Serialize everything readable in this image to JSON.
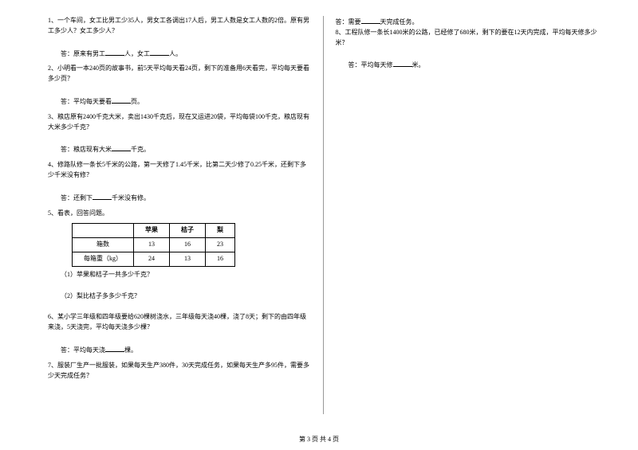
{
  "questions": {
    "q1": "1、一个车间，女工比男工少35人，男女工各调出17人后，男工人数是女工人数的2倍。原有男工多少人？女工多少人？",
    "a1_prefix": "答：原来有男工",
    "a1_mid": "人，女工",
    "a1_suffix": "人。",
    "q2": "2、小明看一本240页的故事书，前5天平均每天看24页，剩下的准备用6天看完，平均每天要看多少页？",
    "a2_prefix": "答：平均每天要看",
    "a2_suffix": "页。",
    "q3": "3、粮店原有2400千克大米，卖出1430千克后，现在又运进20袋，平均每袋100千克，粮店现有大米多少千克？",
    "a3_prefix": "答：粮店现有大米",
    "a3_suffix": "千克。",
    "q4": "4、修路队修一条长5千米的公路，第一天修了1.45千米，比第二天少修了0.25千米，还剩下多少千米没有修？",
    "a4_prefix": "答：还剩下",
    "a4_suffix": "千米没有修。",
    "q5": "5、看表，回答问题。",
    "q5_sub1": "（1）苹果和桔子一共多少千克？",
    "q5_sub2": "（2）梨比桔子多多少千克？",
    "q6": "6、某小学三年级和四年级要给620棵树浇水，三年级每天浇40棵，浇了8天；剩下的由四年级来浇，5天浇完，平均每天浇多少棵？",
    "a6_prefix": "答：平均每天浇",
    "a6_suffix": "棵。",
    "q7": "7、服装厂生产一批服装，如果每天生产380件，30天完成任务，如果每天生产多95件，需要多少天完成任务？",
    "a7_prefix": "答：需要",
    "a7_suffix": "天完成任务。",
    "q8": "8、工程队修一条长1400米的公路，已经修了680米，剩下的要在12天内完成，平均每天修多少米？",
    "a8_prefix": "答：平均每天修",
    "a8_suffix": "米。"
  },
  "table": {
    "headers": [
      "",
      "苹果",
      "桔子",
      "梨"
    ],
    "row1_label": "箱数",
    "row1": [
      "13",
      "16",
      "23"
    ],
    "row2_label": "每箱重（kg）",
    "row2": [
      "24",
      "13",
      "16"
    ]
  },
  "footer": "第 3 页 共 4 页"
}
